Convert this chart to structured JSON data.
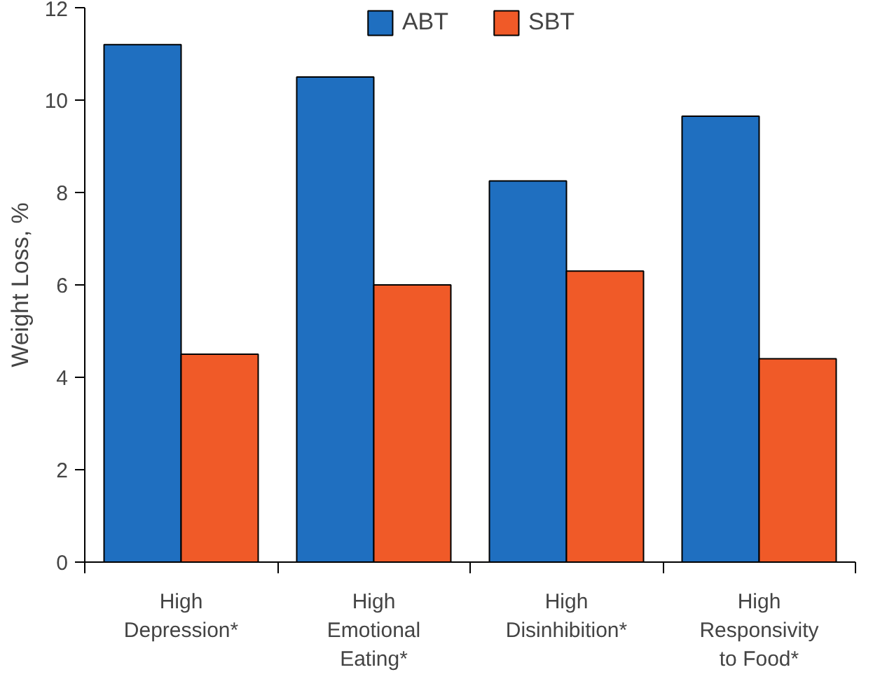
{
  "chart_data": {
    "type": "bar",
    "ylabel": "Weight Loss, %",
    "categories": [
      "High\nDepression*",
      "High\nEmotional\nEating*",
      "High\nDisinhibition*",
      "High\nResponsivity\nto Food*"
    ],
    "series": [
      {
        "name": "ABT",
        "color": "#1f6fc0",
        "values": [
          11.2,
          10.5,
          8.25,
          9.65
        ]
      },
      {
        "name": "SBT",
        "color": "#f05a28",
        "values": [
          4.5,
          6.0,
          6.3,
          4.4
        ]
      }
    ],
    "ylim": [
      0,
      12
    ],
    "yticks": [
      0,
      2,
      4,
      6,
      8,
      10,
      12
    ],
    "grid": false,
    "legend": "top"
  }
}
